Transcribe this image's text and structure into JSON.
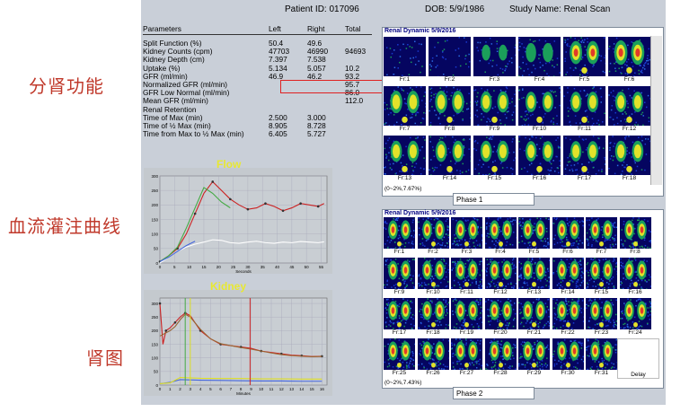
{
  "annotations": {
    "left1": "分肾功能",
    "left2": "血流灌注曲线",
    "left3": "肾图"
  },
  "header": {
    "patient_id": "Patient ID: 017096",
    "dob": "DOB: 5/9/1986",
    "study": "Study Name: Renal Scan"
  },
  "table": {
    "columns": [
      "Parameters",
      "Left",
      "Right",
      "Total"
    ],
    "rows": [
      [
        "Split Function (%)",
        "50.4",
        "49.6",
        ""
      ],
      [
        "Kidney Counts (cpm)",
        "47703",
        "46990",
        "94693"
      ],
      [
        "Kidney Depth (cm)",
        "7.397",
        "7.538",
        ""
      ],
      [
        "Uptake (%)",
        "5.134",
        "5.057",
        "10.2"
      ],
      [
        "GFR (ml/min)",
        "46.9",
        "46.2",
        "93.2"
      ],
      [
        "Normalized GFR (ml/min)",
        "",
        "",
        "95.7"
      ],
      [
        "GFR Low Normal (ml/min)",
        "",
        "",
        "86.0"
      ],
      [
        "Mean GFR (ml/min)",
        "",
        "",
        "112.0"
      ],
      [
        "Renal Retention",
        "",
        "",
        ""
      ],
      [
        "Time of Max (min)",
        "2.500",
        "3.000",
        ""
      ],
      [
        "Time of ½ Max (min)",
        "8.905",
        "8.728",
        ""
      ],
      [
        "Time from Max to ½ Max (min)",
        "6.405",
        "5.727",
        ""
      ]
    ]
  },
  "chart_data": [
    {
      "type": "line",
      "title": "Flow",
      "xlabel": "Seconds",
      "x_ticks": [
        0,
        5,
        10,
        15,
        20,
        25,
        30,
        35,
        40,
        45,
        50,
        55
      ],
      "y_ticks": [
        0,
        50,
        100,
        150,
        200,
        250,
        300
      ],
      "xlim": [
        0,
        57
      ],
      "ylim": [
        0,
        300
      ],
      "series": [
        {
          "color": "#cc2222",
          "x": [
            0,
            3,
            6,
            9,
            12,
            15,
            18,
            21,
            24,
            27,
            30,
            33,
            36,
            39,
            42,
            45,
            48,
            51,
            54,
            56
          ],
          "y": [
            5,
            25,
            50,
            100,
            170,
            240,
            280,
            250,
            220,
            200,
            185,
            190,
            205,
            195,
            180,
            190,
            205,
            200,
            195,
            205
          ],
          "markers": true
        },
        {
          "color": "#44aa44",
          "x": [
            0,
            3,
            6,
            9,
            12,
            15,
            18,
            21,
            24
          ],
          "y": [
            5,
            25,
            55,
            120,
            190,
            260,
            240,
            210,
            190
          ],
          "markers": false
        },
        {
          "color": "#ffffff",
          "x": [
            0,
            3,
            6,
            9,
            12,
            15,
            18,
            21,
            24,
            27,
            30,
            33,
            36,
            39,
            42,
            45,
            48,
            51,
            54,
            56
          ],
          "y": [
            0,
            20,
            40,
            55,
            65,
            72,
            80,
            78,
            70,
            68,
            72,
            75,
            70,
            68,
            72,
            70,
            74,
            72,
            70,
            73
          ],
          "markers": false
        },
        {
          "color": "#4466dd",
          "x": [
            0,
            3,
            6,
            9,
            12
          ],
          "y": [
            5,
            20,
            40,
            60,
            75
          ],
          "markers": false
        }
      ]
    },
    {
      "type": "line",
      "title": "Kidney",
      "xlabel": "Minutes",
      "x_ticks": [
        0,
        1,
        2,
        3,
        4,
        5,
        6,
        7,
        8,
        9,
        10,
        11,
        12,
        13,
        14,
        15,
        16
      ],
      "y_ticks": [
        0,
        50,
        100,
        150,
        200,
        250,
        300
      ],
      "xlim": [
        0,
        16.5
      ],
      "ylim": [
        0,
        320
      ],
      "series": [
        {
          "color": "#cc2222",
          "x": [
            0,
            0.3,
            0.6,
            1,
            1.5,
            2,
            2.5,
            3,
            4,
            5,
            6,
            7,
            8,
            9,
            10,
            11,
            12,
            13,
            14,
            15,
            16
          ],
          "y": [
            300,
            150,
            200,
            210,
            230,
            250,
            265,
            255,
            200,
            170,
            150,
            145,
            140,
            135,
            125,
            120,
            115,
            110,
            108,
            105,
            106
          ],
          "markers": true
        },
        {
          "color": "#996633",
          "x": [
            0,
            0.5,
            1,
            1.5,
            2,
            2.5,
            3,
            4,
            5,
            6,
            7,
            8,
            9,
            10,
            11,
            12,
            13,
            14,
            15,
            16
          ],
          "y": [
            180,
            190,
            200,
            215,
            240,
            260,
            250,
            205,
            170,
            152,
            145,
            138,
            132,
            125,
            118,
            112,
            108,
            106,
            104,
            105
          ],
          "markers": false
        },
        {
          "color": "#4466dd",
          "x": [
            0,
            1,
            2,
            4,
            6,
            8,
            10,
            12,
            14,
            16
          ],
          "y": [
            5,
            10,
            20,
            18,
            17,
            16,
            15,
            15,
            14,
            14
          ],
          "markers": false
        },
        {
          "color": "#dddd22",
          "x": [
            0,
            1,
            2,
            4,
            6,
            8,
            10,
            12,
            14,
            16
          ],
          "y": [
            5,
            8,
            28,
            25,
            24,
            24,
            23,
            23,
            22,
            22
          ],
          "markers": false
        }
      ]
    }
  ],
  "renal_dynamic_1": {
    "title": "Renal Dynamic 5/9/2016",
    "range_label": "(0~2%,7.67%)",
    "phase": "Phase 1",
    "frames": [
      "Fr:1",
      "Fr:2",
      "Fr:3",
      "Fr:4",
      "Fr:5",
      "Fr:6",
      "Fr:7",
      "Fr:8",
      "Fr:9",
      "Fr:10",
      "Fr:11",
      "Fr:12",
      "Fr:13",
      "Fr:14",
      "Fr:15",
      "Fr:16",
      "Fr:17",
      "Fr:18"
    ]
  },
  "renal_dynamic_2": {
    "title": "Renal Dynamic 5/9/2016",
    "range_label": "(0~2%,7.43%)",
    "phase": "Phase 2",
    "delay_label": "Delay",
    "frames": [
      "Fr:1",
      "Fr:2",
      "Fr:3",
      "Fr:4",
      "Fr:5",
      "Fr:6",
      "Fr:7",
      "Fr:8",
      "Fr:9",
      "Fr:10",
      "Fr:11",
      "Fr:12",
      "Fr:13",
      "Fr:14",
      "Fr:15",
      "Fr:16",
      "Fr:17",
      "Fr:18",
      "Fr:19",
      "Fr:20",
      "Fr:21",
      "Fr:22",
      "Fr:23",
      "Fr:24",
      "Fr:25",
      "Fr:26",
      "Fr:27",
      "Fr:28",
      "Fr:29",
      "Fr:30",
      "Fr:31"
    ]
  },
  "colors": {
    "panel_bg": "#c9cfd8",
    "highlight_box": "#e02020",
    "annotation_text": "#c0392b",
    "chart_title": "#e8e832"
  }
}
